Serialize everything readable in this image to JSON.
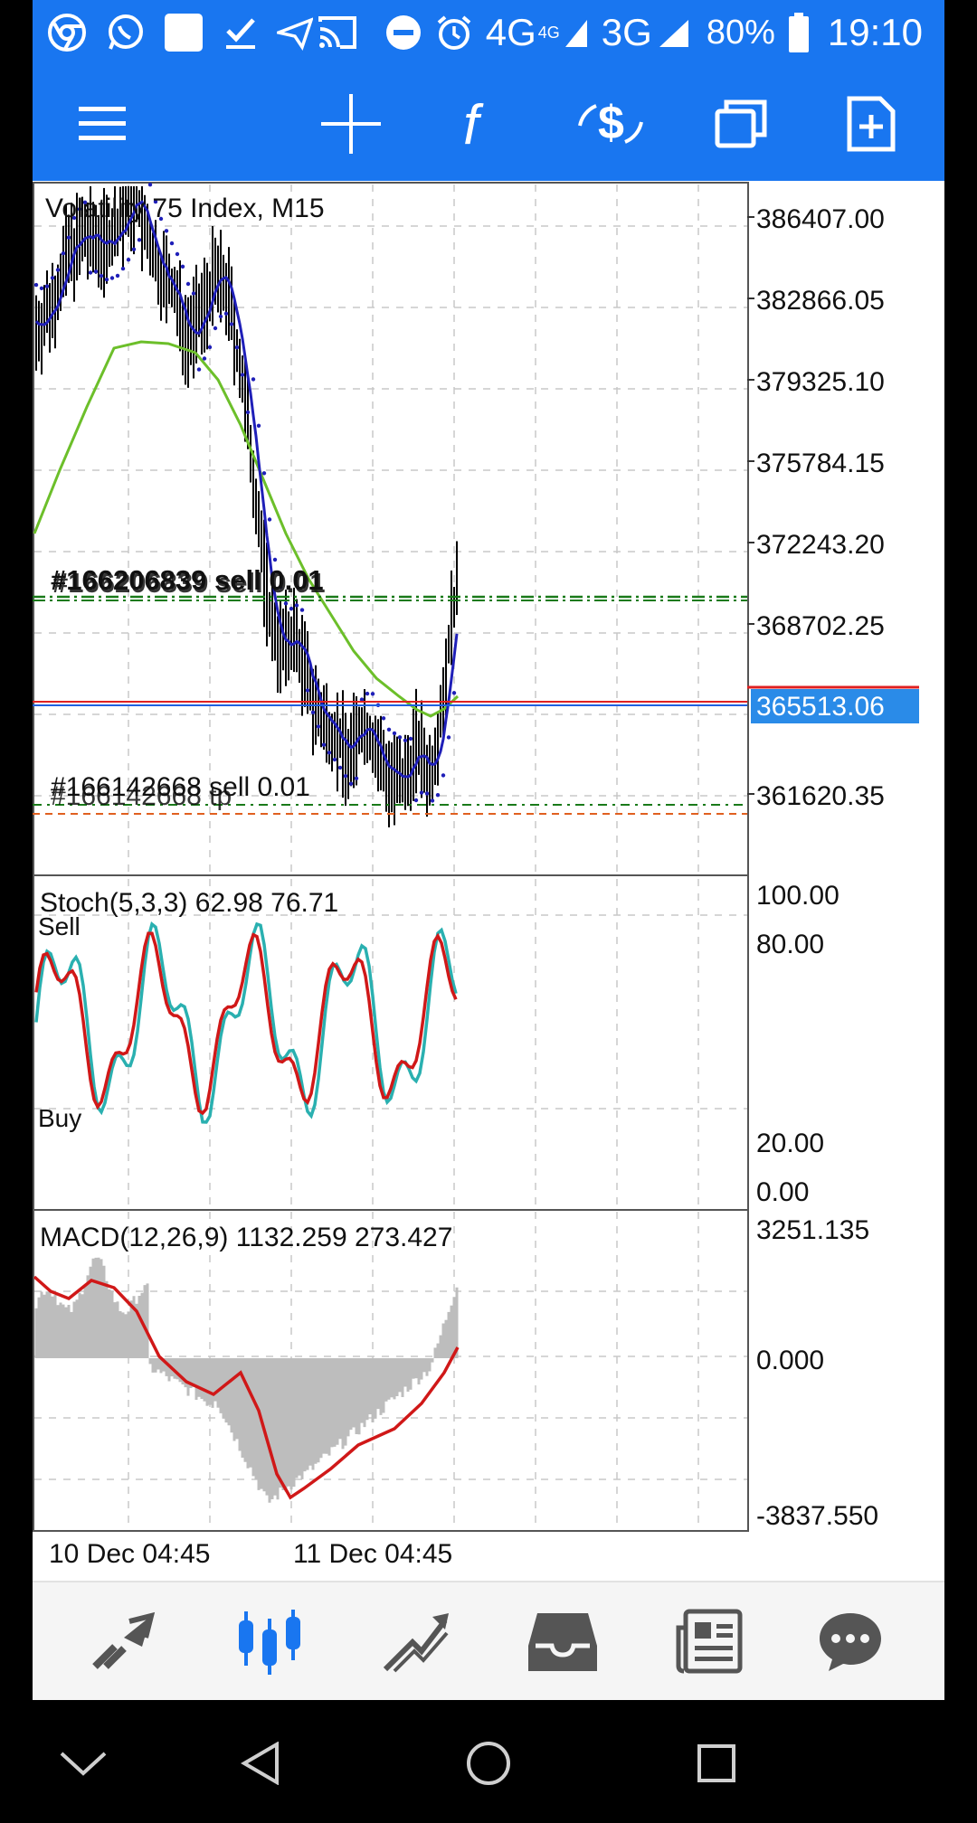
{
  "status_bar": {
    "network_4g": "4G",
    "network_4g_small": "4G",
    "network_3g": "3G",
    "battery": "80%",
    "time": "19:10",
    "left_icons": [
      "chrome-icon",
      "whatsapp-icon",
      "notification-square-icon",
      "checkmark-icon",
      "send-icon",
      "cast-icon"
    ],
    "right_icons": [
      "do-not-disturb-icon",
      "alarm-icon",
      "signal-icon",
      "battery-icon"
    ]
  },
  "toolbar": {
    "buttons": [
      "menu-icon",
      "crosshair-icon",
      "indicator-f-icon",
      "trade-dollar-icon",
      "windows-icon",
      "new-order-icon"
    ]
  },
  "chart": {
    "title": "Volatility 75 Index, M15",
    "price_labels": [
      "386407.00",
      "382866.05",
      "379325.10",
      "375784.15",
      "372243.20",
      "368702.25",
      "361620.35"
    ],
    "current_price": "365513.06",
    "order_sell_label": "#166206839 sell 0.01",
    "order_sell_label_overlap": "#166206839 sell 0.01",
    "order_sell2_label": "#166142668 sell 0.01",
    "order_tp_label": "#166142668 tp",
    "stoch_title": "Stoch(5,3,3) 62.98 76.71",
    "stoch_sell": "Sell",
    "stoch_buy": "Buy",
    "stoch_levels": [
      "100.00",
      "80.00",
      "20.00",
      "0.00"
    ],
    "macd_title": "MACD(12,26,9) 1132.259 273.427",
    "macd_levels": [
      "3251.135",
      "0.000",
      "-3837.550"
    ],
    "time_labels": [
      "10 Dec 04:45",
      "11 Dec 04:45"
    ],
    "colors": {
      "candles": "#000000",
      "ma_fast": "#1f1fb8",
      "ma_slow": "#6cbf2a",
      "order_line": "#1a7a1a",
      "tp_line": "#e06020",
      "bid_line": "#e02020",
      "ask_line": "#2060e0",
      "current_price_bg": "#2a8be8",
      "stoch_main": "#d01818",
      "stoch_signal": "#2ab0b0",
      "macd_hist": "#bdbdbd",
      "macd_signal": "#d01818"
    }
  },
  "bottom_nav": {
    "items": [
      "quotes-icon",
      "chart-icon",
      "trade-icon",
      "history-icon",
      "news-icon",
      "chat-icon"
    ],
    "active": "chart-icon"
  },
  "system_nav": {
    "items": [
      "collapse-icon",
      "back-icon",
      "home-icon",
      "recents-icon"
    ]
  }
}
